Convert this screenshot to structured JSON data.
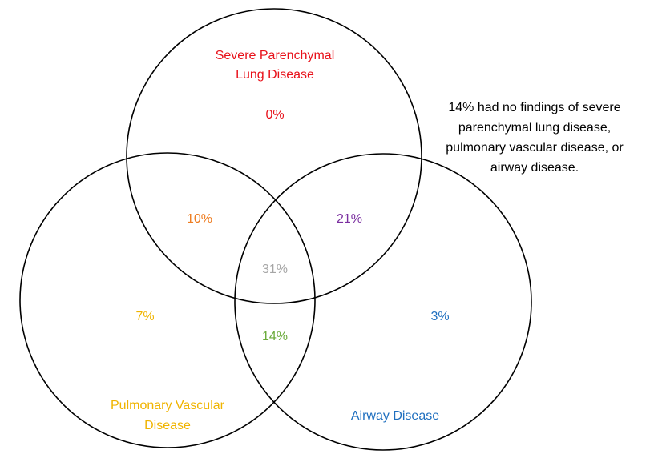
{
  "sets": {
    "severe_parenchymal": {
      "label_line1": "Severe Parenchymal",
      "label_line2": "Lung Disease",
      "color": "#e8111a"
    },
    "pulmonary_vascular": {
      "label_line1": "Pulmonary Vascular",
      "label_line2": "Disease",
      "color": "#f0b400"
    },
    "airway": {
      "label_line1": "Airway Disease",
      "color": "#1f6fbf"
    }
  },
  "regions": {
    "parenchymal_only": {
      "value": "0%",
      "color": "#e8111a"
    },
    "parenchymal_vascular": {
      "value": "10%",
      "color": "#ee7d22"
    },
    "parenchymal_airway": {
      "value": "21%",
      "color": "#7b2fa0"
    },
    "all_three": {
      "value": "31%",
      "color": "#a6a6a6"
    },
    "vascular_only": {
      "value": "7%",
      "color": "#f0b400"
    },
    "vascular_airway": {
      "value": "14%",
      "color": "#6aaa3a"
    },
    "airway_only": {
      "value": "3%",
      "color": "#1f6fbf"
    }
  },
  "note": {
    "line1": "14% had no findings of severe",
    "line2": "parenchymal lung disease,",
    "line3": "pulmonary vascular disease, or",
    "line4": "airway disease."
  }
}
